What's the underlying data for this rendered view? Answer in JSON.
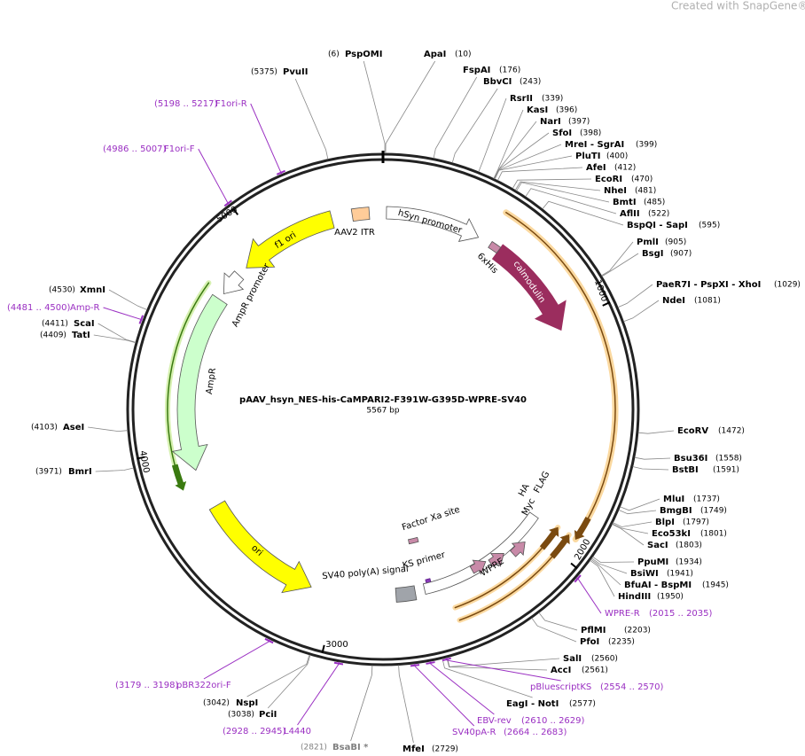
{
  "watermark": "Created with SnapGene®",
  "title": "pAAV_hsyn_NES-his-CaMPARI2-F391W-G395D-WPRE-SV40",
  "size": "5567 bp",
  "enzymes": [
    {
      "name": "PspOMI",
      "pos": "(6)"
    },
    {
      "name": "ApaI",
      "pos": "(10)"
    },
    {
      "name": "FspAI",
      "pos": "(176)"
    },
    {
      "name": "BbvCI",
      "pos": "(243)"
    },
    {
      "name": "RsrII",
      "pos": "(339)"
    },
    {
      "name": "KasI",
      "pos": "(396)"
    },
    {
      "name": "NarI",
      "pos": "(397)"
    },
    {
      "name": "SfoI",
      "pos": "(398)"
    },
    {
      "name": "MreI  - SgrAI",
      "pos": "(399)"
    },
    {
      "name": "PluTI",
      "pos": "(400)"
    },
    {
      "name": "AfeI",
      "pos": "(412)"
    },
    {
      "name": "EcoRI",
      "pos": "(470)"
    },
    {
      "name": "NheI",
      "pos": "(481)"
    },
    {
      "name": "BmtI",
      "pos": "(485)"
    },
    {
      "name": "AflII",
      "pos": "(522)"
    },
    {
      "name": "BspQI  - SapI",
      "pos": "(595)"
    },
    {
      "name": "PmlI",
      "pos": "(905)"
    },
    {
      "name": "BsgI",
      "pos": "(907)"
    },
    {
      "name": "PaeR7I  - PspXI  - XhoI",
      "pos": "(1029)"
    },
    {
      "name": "NdeI",
      "pos": "(1081)"
    },
    {
      "name": "EcoRV",
      "pos": "(1472)"
    },
    {
      "name": "Bsu36I",
      "pos": "(1558)"
    },
    {
      "name": "BstBI",
      "pos": "(1591)"
    },
    {
      "name": "MluI",
      "pos": "(1737)"
    },
    {
      "name": "BmgBI",
      "pos": "(1749)"
    },
    {
      "name": "BlpI",
      "pos": "(1797)"
    },
    {
      "name": "Eco53kI",
      "pos": "(1801)"
    },
    {
      "name": "SacI",
      "pos": "(1803)"
    },
    {
      "name": "PpuMI",
      "pos": "(1934)"
    },
    {
      "name": "BsiWI",
      "pos": "(1941)"
    },
    {
      "name": "BfuAI  - BspMI",
      "pos": "(1945)"
    },
    {
      "name": "HindIII",
      "pos": "(1950)"
    },
    {
      "name": "PflMI",
      "pos": "(2203)"
    },
    {
      "name": "PfoI",
      "pos": "(2235)"
    },
    {
      "name": "SalI",
      "pos": "(2560)"
    },
    {
      "name": "AccI",
      "pos": "(2561)"
    },
    {
      "name": "EagI  - NotI",
      "pos": "(2577)"
    },
    {
      "name": "MfeI",
      "pos": "(2729)"
    },
    {
      "name": "BsaBI *",
      "pos": "(2821)",
      "color": "#808080"
    },
    {
      "name": "PciI",
      "pos": "(3038)"
    },
    {
      "name": "NspI",
      "pos": "(3042)"
    },
    {
      "name": "BmrI",
      "pos": "(3971)"
    },
    {
      "name": "AseI",
      "pos": "(4103)"
    },
    {
      "name": "TatI",
      "pos": "(4409)"
    },
    {
      "name": "ScaI",
      "pos": "(4411)"
    },
    {
      "name": "XmnI",
      "pos": "(4530)"
    },
    {
      "name": "PvuII",
      "pos": "(5375)"
    }
  ],
  "primers": [
    {
      "name": "F1ori-R",
      "range": "(5198 .. 5217)"
    },
    {
      "name": "F1ori-F",
      "range": "(4986 .. 5007)"
    },
    {
      "name": "Amp-R",
      "range": "(4481 .. 4500)"
    },
    {
      "name": "WPRE-R",
      "range": "(2015 .. 2035)"
    },
    {
      "name": "pBluescriptKS",
      "range": "(2554 .. 2570)"
    },
    {
      "name": "EBV-rev",
      "range": "(2610 .. 2629)"
    },
    {
      "name": "SV40pA-R",
      "range": "(2664 .. 2683)"
    },
    {
      "name": "pBR322ori-F",
      "range": "(3179 .. 3198)"
    },
    {
      "name": "L4440",
      "range": "(2928 .. 2945)"
    }
  ],
  "features": [
    "AAV2 ITR",
    "hSyn promoter",
    "6xHis",
    "calmodulin",
    "f1 ori",
    "AmpR promoter",
    "AmpR",
    "ori",
    "SV40 poly(A) signal",
    "KS primer",
    "WPRE",
    "Factor Xa site",
    "Myc",
    "HA",
    "FLAG"
  ],
  "ticks": [
    "1000",
    "2000",
    "3000",
    "4000",
    "5000"
  ]
}
